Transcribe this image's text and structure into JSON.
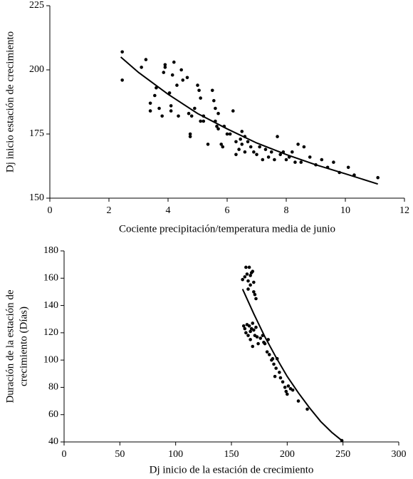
{
  "chart_data": [
    {
      "type": "scatter",
      "xlabel": "Cociente precipitación/temperatura media de junio",
      "ylabel": "Dj inicio estación de crecimiento",
      "xlim": [
        0,
        12
      ],
      "xticks": [
        0,
        2,
        4,
        6,
        8,
        10,
        12
      ],
      "ylim": [
        150,
        225
      ],
      "yticks": [
        150,
        175,
        200,
        225
      ],
      "grid": false,
      "series": [
        {
          "type": "scatter",
          "color": "#000000",
          "x": [
            2.45,
            2.45,
            3.1,
            3.25,
            3.4,
            3.4,
            3.55,
            3.6,
            3.7,
            3.8,
            3.85,
            3.9,
            3.9,
            4.05,
            4.1,
            4.1,
            4.15,
            4.2,
            4.3,
            4.35,
            4.45,
            4.5,
            4.65,
            4.7,
            4.75,
            4.75,
            4.8,
            4.9,
            5.0,
            5.05,
            5.1,
            5.1,
            5.2,
            5.2,
            5.35,
            5.5,
            5.55,
            5.6,
            5.6,
            5.65,
            5.7,
            5.7,
            5.8,
            5.85,
            5.9,
            6.0,
            6.1,
            6.2,
            6.3,
            6.3,
            6.4,
            6.45,
            6.5,
            6.5,
            6.6,
            6.6,
            6.7,
            6.8,
            6.9,
            7.0,
            7.1,
            7.2,
            7.3,
            7.4,
            7.5,
            7.6,
            7.7,
            7.8,
            7.9,
            8.0,
            8.1,
            8.2,
            8.3,
            8.4,
            8.5,
            8.6,
            8.8,
            9.0,
            9.2,
            9.4,
            9.6,
            9.8,
            10.1,
            10.3,
            11.1
          ],
          "values": [
            207,
            196,
            201,
            204,
            187,
            184,
            190,
            193,
            185,
            182,
            199,
            201,
            202,
            191,
            186,
            184,
            198,
            203,
            194,
            182,
            200,
            196,
            197,
            183,
            175,
            174,
            182,
            185,
            194,
            192,
            189,
            180,
            182,
            180,
            171,
            192,
            188,
            185,
            180,
            178,
            183,
            177,
            171,
            170,
            178,
            175,
            175,
            184,
            167,
            172,
            169,
            173,
            176,
            171,
            174,
            168,
            172,
            170,
            168,
            167,
            170,
            165,
            169,
            166,
            168,
            165,
            174,
            167,
            168,
            165,
            166,
            168,
            164,
            171,
            164,
            170,
            166,
            163,
            165,
            162,
            164,
            160,
            162,
            159,
            158
          ]
        },
        {
          "type": "line",
          "color": "#000000",
          "x": [
            2.4,
            3,
            4,
            5,
            6,
            7,
            8,
            9,
            10,
            11.1
          ],
          "values": [
            205,
            199,
            190.5,
            183,
            177,
            171.5,
            167,
            163,
            159.5,
            155.5
          ]
        }
      ]
    },
    {
      "type": "scatter",
      "xlabel": "Dj inicio de la estación de crecimiento",
      "ylabel": [
        "Duración de la estación de",
        "crecimiento (Días)"
      ],
      "xlim": [
        0,
        300
      ],
      "xticks": [
        0,
        50,
        100,
        150,
        200,
        250,
        300
      ],
      "ylim": [
        40,
        180
      ],
      "yticks": [
        40,
        60,
        80,
        100,
        120,
        140,
        160,
        180
      ],
      "grid": false,
      "series": [
        {
          "type": "scatter",
          "color": "#000000",
          "x": [
            160,
            162,
            163,
            164,
            165,
            165,
            166,
            167,
            167,
            168,
            169,
            170,
            170,
            171,
            172,
            161,
            162,
            163,
            164,
            165,
            166,
            167,
            167,
            168,
            169,
            169,
            170,
            171,
            172,
            173,
            174,
            176,
            178,
            179,
            180,
            182,
            183,
            184,
            186,
            187,
            188,
            189,
            190,
            191,
            193,
            194,
            196,
            198,
            199,
            200,
            201,
            203,
            205,
            210,
            218,
            249
          ],
          "values": [
            159,
            161,
            168,
            163,
            158,
            152,
            168,
            155,
            162,
            164,
            165,
            150,
            157,
            148,
            145,
            125,
            123,
            120,
            126,
            118,
            125,
            121,
            115,
            123,
            127,
            110,
            122,
            118,
            124,
            117,
            112,
            116,
            118,
            113,
            112,
            106,
            115,
            104,
            100,
            101,
            97,
            88,
            94,
            101,
            91,
            87,
            84,
            80,
            77,
            75,
            81,
            79,
            78,
            70,
            64,
            41
          ]
        },
        {
          "type": "line",
          "color": "#000000",
          "x": [
            160,
            170,
            180,
            190,
            200,
            210,
            220,
            230,
            240,
            249
          ],
          "values": [
            152,
            134,
            117,
            102,
            88,
            76,
            65,
            55,
            47,
            41
          ]
        }
      ]
    }
  ]
}
